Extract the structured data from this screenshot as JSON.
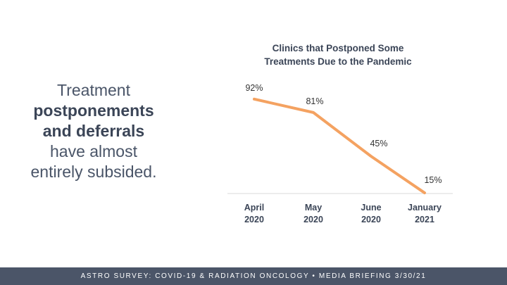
{
  "headline": {
    "line1": "Treatment",
    "line2": "postponements",
    "line3": "and deferrals",
    "line4": "have almost",
    "line5": "entirely subsided."
  },
  "chart_data": {
    "type": "line",
    "title_line1": "Clinics that Postponed Some",
    "title_line2": "Treatments Due to the Pandemic",
    "categories": [
      [
        "April",
        "2020"
      ],
      [
        "May",
        "2020"
      ],
      [
        "June",
        "2020"
      ],
      [
        "January",
        "2021"
      ]
    ],
    "values": [
      92,
      81,
      45,
      15
    ],
    "value_labels": [
      "92%",
      "81%",
      "45%",
      "15%"
    ],
    "unit": "%",
    "ylim": [
      0,
      100
    ],
    "xlabel": "",
    "ylabel": "",
    "grid": false,
    "line_color": "#f4a261"
  },
  "footer": {
    "text": "ASTRO SURVEY: COVID-19 & RADIATION ONCOLOGY  •  MEDIA BRIEFING 3/30/21"
  }
}
